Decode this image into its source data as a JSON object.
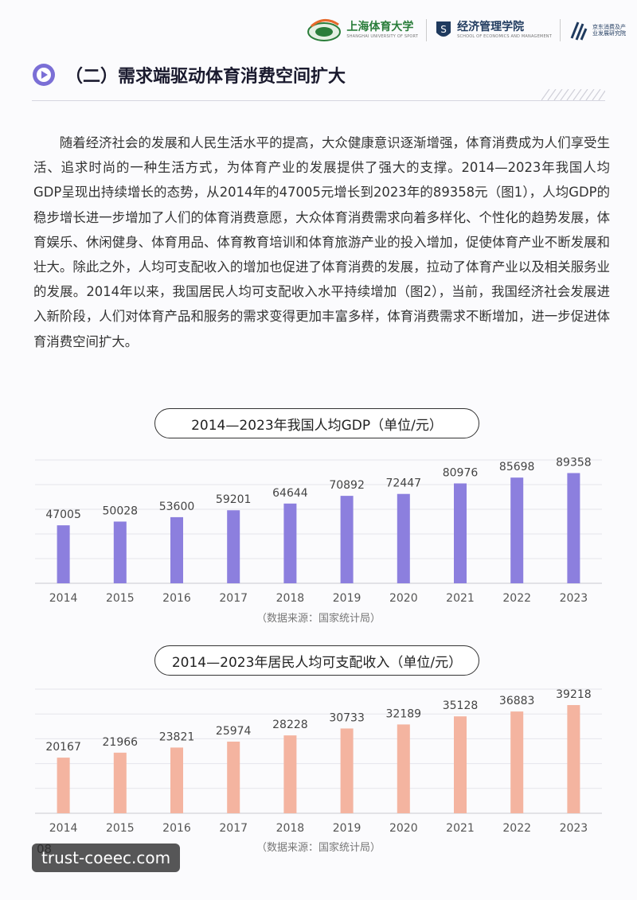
{
  "header": {
    "logo1_title": "上海体育大学",
    "logo1_sub": "SHANGHAI UNIVERSITY OF SPORT",
    "logo2_title": "经济管理学院",
    "logo2_sub": "SCHOOL OF ECONOMICS AND MANAGEMENT",
    "logo3_title": "京东消费及产业发展研究院",
    "colors": {
      "green": "#2a7d3a",
      "navy": "#1f3a5e"
    }
  },
  "section": {
    "title": "（二）需求端驱动体育消费空间扩大",
    "icon": "play-circle-icon",
    "icon_color": "#7b6fd6"
  },
  "paragraph": "随着经济社会的发展和人民生活水平的提高，大众健康意识逐渐增强，体育消费成为人们享受生活、追求时尚的一种生活方式，为体育产业的发展提供了强大的支撑。2014—2023年我国人均GDP呈现出持续增长的态势，从2014年的47005元增长到2023年的89358元（图1），人均GDP的稳步增长进一步增加了人们的体育消费意愿，大众体育消费需求向着多样化、个性化的趋势发展，体育娱乐、休闲健身、体育用品、体育教育培训和体育旅游产业的投入增加，促使体育产业不断发展和壮大。除此之外，人均可支配收入的增加也促进了体育消费的发展，拉动了体育产业以及相关服务业的发展。2014年以来，我国居民人均可支配收入水平持续增加（图2），当前，我国经济社会发展进入新阶段，人们对体育产品和服务的需求变得更加丰富多样，体育消费需求不断增加，进一步促进体育消费空间扩大。",
  "chart_data": [
    {
      "type": "bar",
      "title": "2014—2023年我国人均GDP（单位/元）",
      "categories": [
        "2014",
        "2015",
        "2016",
        "2017",
        "2018",
        "2019",
        "2020",
        "2021",
        "2022",
        "2023"
      ],
      "values": [
        47005,
        50028,
        53600,
        59201,
        64644,
        70892,
        72447,
        80976,
        85698,
        89358
      ],
      "ylim": [
        0,
        100000
      ],
      "color": "#8c7fde",
      "source": "（数据来源：国家统计局）"
    },
    {
      "type": "bar",
      "title": "2014—2023年居民人均可支配收入（单位/元）",
      "categories": [
        "2014",
        "2015",
        "2016",
        "2017",
        "2018",
        "2019",
        "2020",
        "2021",
        "2022",
        "2023"
      ],
      "values": [
        20167,
        21966,
        23821,
        25974,
        28228,
        30733,
        32189,
        35128,
        36883,
        39218
      ],
      "ylim": [
        0,
        45000
      ],
      "color": "#f4b4a0",
      "source": "（数据来源：国家统计局）"
    }
  ],
  "footer": {
    "page_number": "08",
    "watermark": "trust-coeec.com"
  }
}
